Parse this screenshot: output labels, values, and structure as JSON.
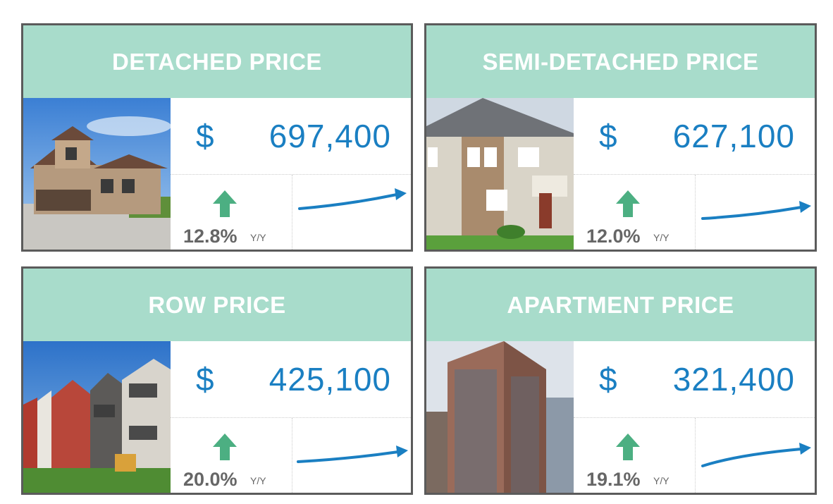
{
  "colors": {
    "header_bg": "#a8dccb",
    "price_blue": "#1a7fc2",
    "arrow_green": "#4caf82",
    "trend_blue": "#1a7fc2"
  },
  "cards": [
    {
      "title": "DETACHED PRICE",
      "currency": "$",
      "price": "697,400",
      "change": "12.8%",
      "change_unit": "Y/Y",
      "direction_icon": "arrow-up-icon",
      "trend": "rising"
    },
    {
      "title": "SEMI-DETACHED PRICE",
      "currency": "$",
      "price": "627,100",
      "change": "12.0%",
      "change_unit": "Y/Y",
      "direction_icon": "arrow-up-icon",
      "trend": "rising"
    },
    {
      "title": "ROW PRICE",
      "currency": "$",
      "price": "425,100",
      "change": "20.0%",
      "change_unit": "Y/Y",
      "direction_icon": "arrow-up-icon",
      "trend": "rising"
    },
    {
      "title": "APARTMENT PRICE",
      "currency": "$",
      "price": "321,400",
      "change": "19.1%",
      "change_unit": "Y/Y",
      "direction_icon": "arrow-up-icon",
      "trend": "rising"
    }
  ]
}
